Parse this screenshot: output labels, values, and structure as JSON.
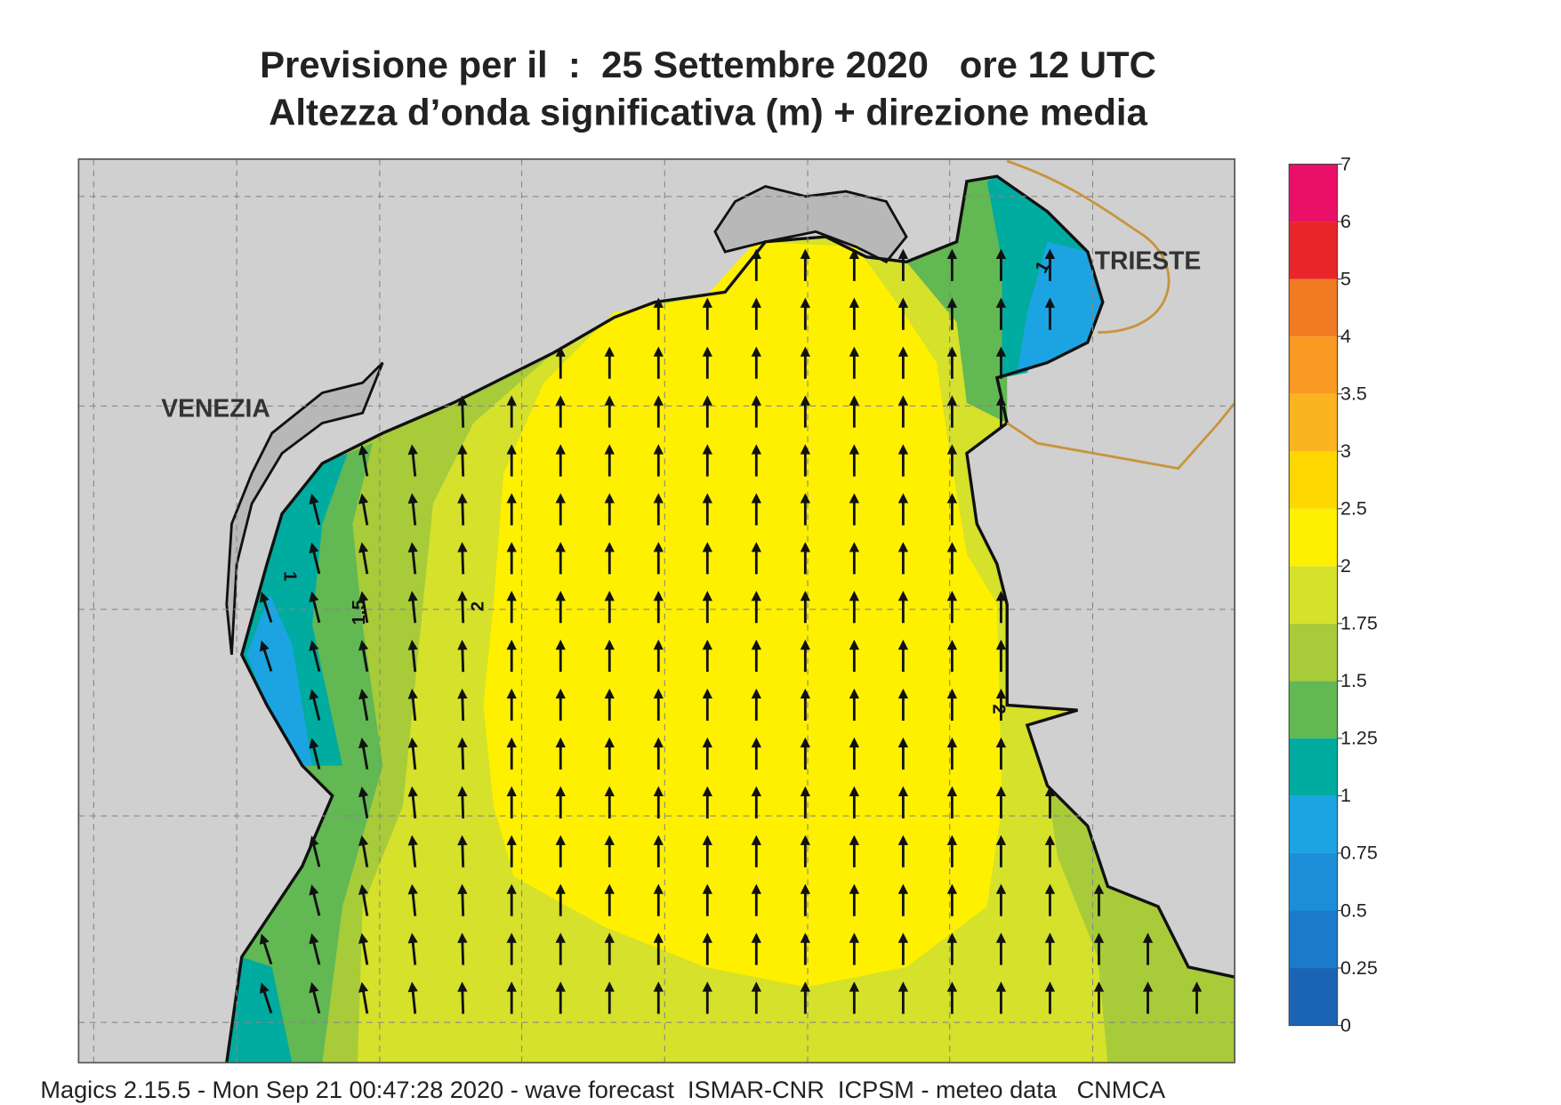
{
  "header": {
    "title": "Previsione per il  :  25 Settembre 2020   ore 12 UTC",
    "subtitle": "Altezza d’onda significativa (m) + direzione media"
  },
  "map": {
    "places": [
      "VENEZIA",
      "TRIESTE"
    ],
    "contour_labels": [
      "1",
      "1.5",
      "2",
      "2",
      "1"
    ]
  },
  "legend": {
    "levels": [
      0,
      0.25,
      0.5,
      0.75,
      1,
      1.25,
      1.5,
      1.75,
      2,
      2.5,
      3,
      3.5,
      4,
      5,
      6,
      7
    ],
    "colors": [
      "#1b64b4",
      "#1c7acb",
      "#1c8ed8",
      "#1ca4e2",
      "#00aba0",
      "#62b852",
      "#a8cb3a",
      "#d5e12a",
      "#fff000",
      "#ffd700",
      "#fbb420",
      "#f99a22",
      "#f27a22",
      "#e8262a",
      "#ea1068"
    ]
  },
  "footer": "Magics 2.15.5 - Mon Sep 21 00:47:28 2020 - wave forecast  ISMAR-CNR  ICPSM - meteo data   CNMCA"
}
